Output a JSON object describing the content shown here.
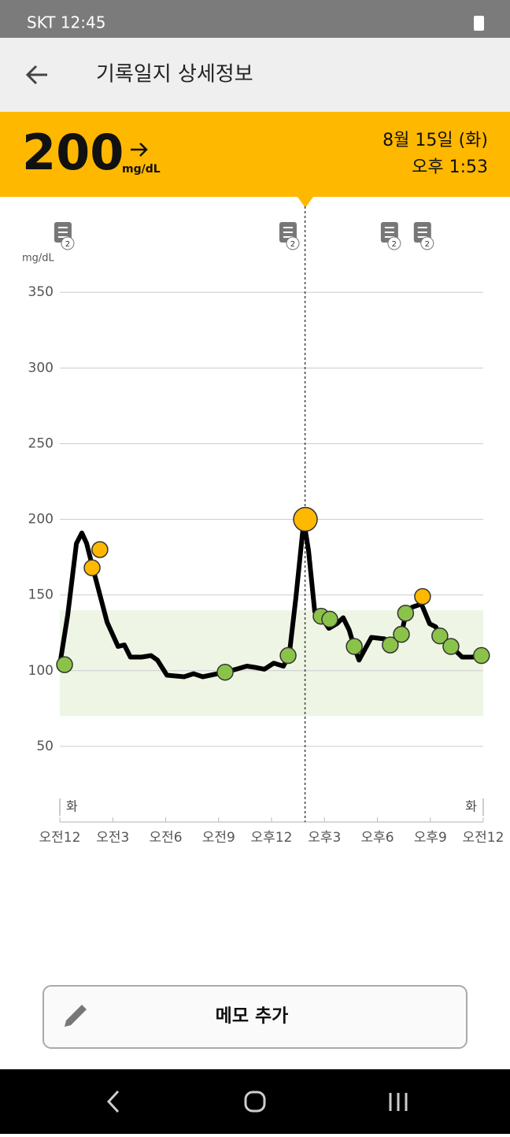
{
  "status_bar": {
    "carrier_time": "SKT 12:45"
  },
  "header": {
    "title": "기록일지 상세정보"
  },
  "banner": {
    "reading": "200",
    "unit": "mg/dL",
    "date": "8월 15일 (화)",
    "time": "오후 1:53"
  },
  "chart_data": {
    "type": "line",
    "y_label": "mg/dL",
    "xlim": [
      0,
      24
    ],
    "ylim": [
      0,
      360
    ],
    "xticks": [
      {
        "value": 0,
        "label": "오전12"
      },
      {
        "value": 3,
        "label": "오전3"
      },
      {
        "value": 6,
        "label": "오전6"
      },
      {
        "value": 9,
        "label": "오전9"
      },
      {
        "value": 12,
        "label": "오후12"
      },
      {
        "value": 15,
        "label": "오후3"
      },
      {
        "value": 18,
        "label": "오후6"
      },
      {
        "value": 21,
        "label": "오후9"
      },
      {
        "value": 24,
        "label": "오전12"
      }
    ],
    "yticks": [
      50,
      100,
      150,
      200,
      250,
      300,
      350
    ],
    "grid": true,
    "day_labels": [
      {
        "x": 0,
        "label": "화"
      },
      {
        "x": 24,
        "label": "화"
      }
    ],
    "target_range": {
      "low": 70,
      "high": 140,
      "color": "#eef5e5"
    },
    "cursor_x": 13.9,
    "memos": [
      {
        "x": 0.22,
        "count": "2"
      },
      {
        "x": 12.98,
        "count": "2"
      },
      {
        "x": 18.73,
        "count": "2"
      },
      {
        "x": 20.6,
        "count": "2"
      }
    ],
    "line": {
      "color": "#000000",
      "x": [
        0,
        0.45,
        0.94,
        1.25,
        1.52,
        1.87,
        2.32,
        2.68,
        3.3,
        3.66,
        4.0,
        4.64,
        5.17,
        5.53,
        6.07,
        7.05,
        7.58,
        8.1,
        9.37,
        10.0,
        10.6,
        11.15,
        11.6,
        12.13,
        12.67,
        13.0,
        13.38,
        13.83,
        14.1,
        14.45,
        14.9,
        15.25,
        15.7,
        16.06,
        16.4,
        16.7,
        16.96,
        17.66,
        18.4,
        18.73,
        19.36,
        19.6,
        19.98,
        20.5,
        20.96,
        21.3,
        21.57,
        22.1,
        22.8,
        23.4,
        23.9
      ],
      "values": [
        104,
        137,
        184,
        191,
        184,
        168,
        148,
        132,
        116,
        117,
        109,
        109,
        110,
        107,
        97,
        96,
        98,
        96,
        99,
        101,
        103,
        102,
        101,
        105,
        103,
        110,
        148,
        199,
        179,
        139,
        134,
        128,
        131,
        135,
        127,
        115,
        107,
        122,
        121,
        117,
        124,
        137,
        142,
        144,
        131,
        129,
        123,
        117,
        109,
        109,
        110
      ]
    },
    "normal_points": {
      "color": "#8bc34a",
      "x": [
        0.27,
        9.37,
        12.94,
        14.81,
        15.3,
        16.69,
        18.73,
        19.36,
        19.6,
        21.54,
        22.17,
        23.9
      ],
      "values": [
        104,
        99,
        110,
        136,
        134,
        116,
        117,
        124,
        138,
        123,
        116,
        110
      ]
    },
    "high_points": {
      "color": "#ffb800",
      "x": [
        1.83,
        2.27,
        13.92,
        20.56
      ],
      "values": [
        168,
        180,
        200,
        149
      ]
    }
  },
  "button": {
    "label": "메모 추가"
  }
}
